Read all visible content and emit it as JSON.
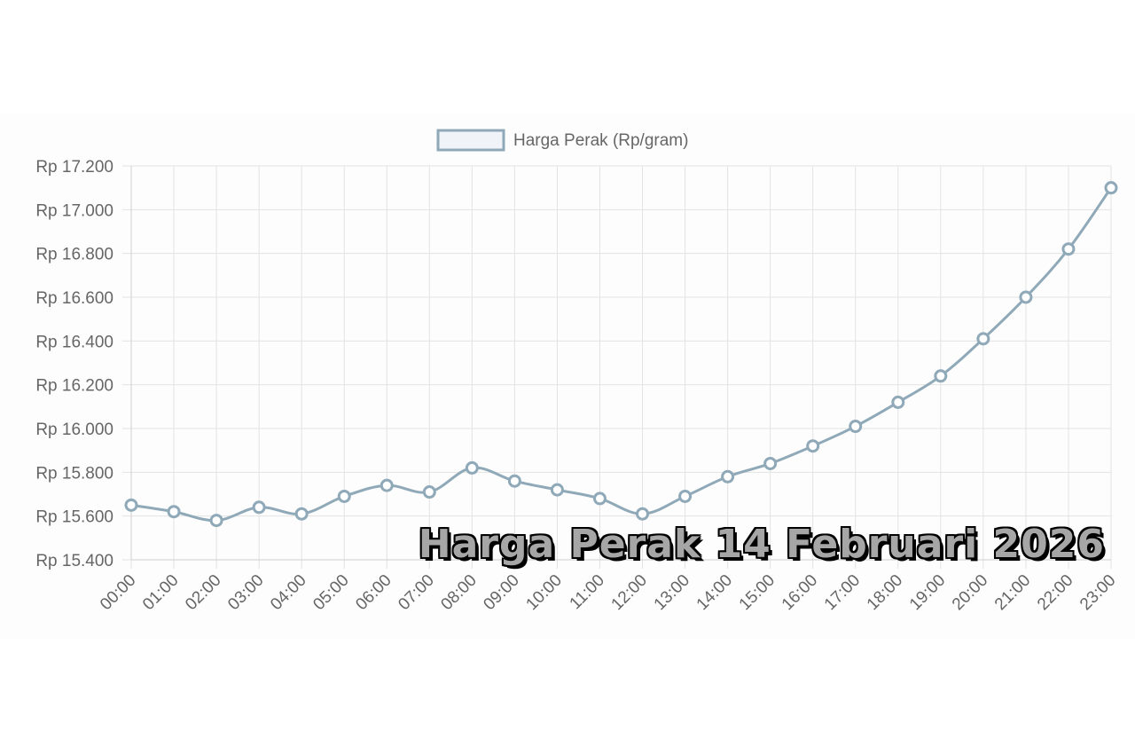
{
  "chart_data": {
    "type": "line",
    "legend": {
      "label": "Harga Perak (Rp/gram)",
      "position": "top"
    },
    "categories": [
      "00:00",
      "01:00",
      "02:00",
      "03:00",
      "04:00",
      "05:00",
      "06:00",
      "07:00",
      "08:00",
      "09:00",
      "10:00",
      "11:00",
      "12:00",
      "13:00",
      "14:00",
      "15:00",
      "16:00",
      "17:00",
      "18:00",
      "19:00",
      "20:00",
      "21:00",
      "22:00",
      "23:00"
    ],
    "series": [
      {
        "name": "Harga Perak (Rp/gram)",
        "values": [
          15650,
          15620,
          15580,
          15640,
          15610,
          15690,
          15740,
          15710,
          15820,
          15760,
          15720,
          15680,
          15610,
          15690,
          15780,
          15840,
          15920,
          16010,
          16120,
          16240,
          16410,
          16600,
          16820,
          17100
        ]
      }
    ],
    "yticks": [
      15400,
      15600,
      15800,
      16000,
      16200,
      16400,
      16600,
      16800,
      17000,
      17200
    ],
    "ytick_labels": [
      "Rp 15.400",
      "Rp 15.600",
      "Rp 15.800",
      "Rp 16.000",
      "Rp 16.200",
      "Rp 16.400",
      "Rp 16.600",
      "Rp 16.800",
      "Rp 17.000",
      "Rp 17.200"
    ],
    "ylim": [
      15400,
      17200
    ],
    "grid": true,
    "colors": {
      "line": "#8fa9b8",
      "legend_fill": "#f0f4f8",
      "grid": "#e3e3e3",
      "point_fill": "#ffffff"
    }
  },
  "overlay": {
    "title": "Harga Perak 14 Februari 2026"
  }
}
